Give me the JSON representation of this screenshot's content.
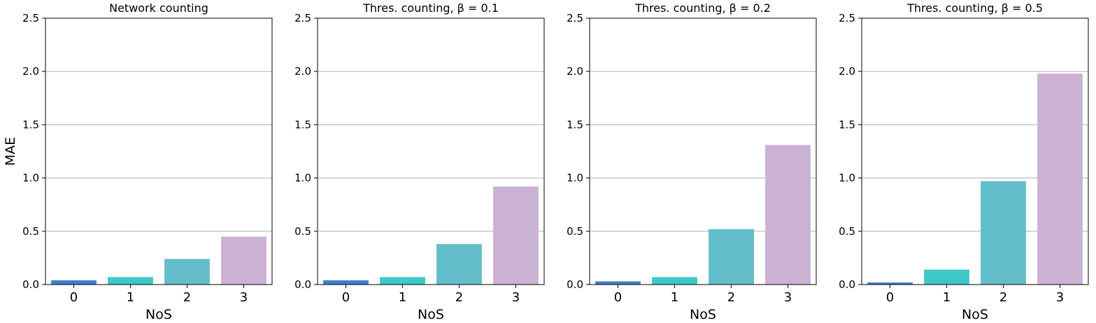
{
  "chart_data": [
    {
      "type": "bar",
      "title": "Network counting",
      "xlabel": "NoS",
      "ylabel": "MAE",
      "categories": [
        "0",
        "1",
        "2",
        "3"
      ],
      "values": [
        0.04,
        0.07,
        0.24,
        0.45
      ],
      "ylim": [
        0,
        2.5
      ],
      "yticks": [
        "0.0",
        "0.5",
        "1.0",
        "1.5",
        "2.0",
        "2.5"
      ],
      "grid": "horizontal"
    },
    {
      "type": "bar",
      "title": "Thres. counting, β = 0.1",
      "xlabel": "NoS",
      "ylabel": "",
      "categories": [
        "0",
        "1",
        "2",
        "3"
      ],
      "values": [
        0.04,
        0.07,
        0.38,
        0.92
      ],
      "ylim": [
        0,
        2.5
      ],
      "yticks": [
        "0.0",
        "0.5",
        "1.0",
        "1.5",
        "2.0",
        "2.5"
      ],
      "grid": "horizontal"
    },
    {
      "type": "bar",
      "title": "Thres. counting, β = 0.2",
      "xlabel": "NoS",
      "ylabel": "",
      "categories": [
        "0",
        "1",
        "2",
        "3"
      ],
      "values": [
        0.03,
        0.07,
        0.52,
        1.31
      ],
      "ylim": [
        0,
        2.5
      ],
      "yticks": [
        "0.0",
        "0.5",
        "1.0",
        "1.5",
        "2.0",
        "2.5"
      ],
      "grid": "horizontal"
    },
    {
      "type": "bar",
      "title": "Thres. counting, β = 0.5",
      "xlabel": "NoS",
      "ylabel": "",
      "categories": [
        "0",
        "1",
        "2",
        "3"
      ],
      "values": [
        0.02,
        0.14,
        0.97,
        1.98
      ],
      "ylim": [
        0,
        2.5
      ],
      "yticks": [
        "0.0",
        "0.5",
        "1.0",
        "1.5",
        "2.0",
        "2.5"
      ],
      "grid": "horizontal"
    }
  ],
  "colors": {
    "bars": [
      "#3f7fd0",
      "#3ec8c8",
      "#63bdca",
      "#cbb2d4"
    ],
    "grid": "#b0b0b0",
    "axis": "#000000"
  }
}
